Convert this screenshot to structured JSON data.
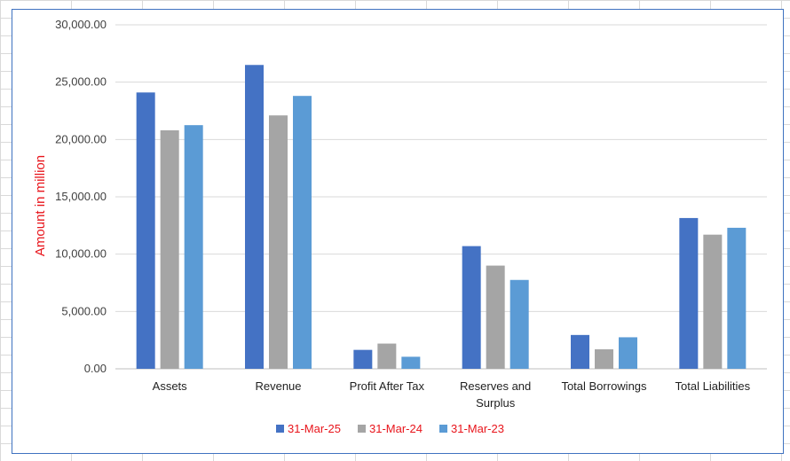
{
  "chart_data": {
    "type": "bar",
    "title": "",
    "xlabel": "",
    "ylabel": "Amount in million",
    "ylim": [
      0,
      30000
    ],
    "yticks": [
      "0.00",
      "5,000.00",
      "10,000.00",
      "15,000.00",
      "20,000.00",
      "25,000.00",
      "30,000.00"
    ],
    "ytick_values": [
      0,
      5000,
      10000,
      15000,
      20000,
      25000,
      30000
    ],
    "grid": true,
    "legend_position": "bottom",
    "categories": [
      [
        "Assets"
      ],
      [
        "Revenue"
      ],
      [
        "Profit After Tax"
      ],
      [
        "Reserves and",
        "Surplus"
      ],
      [
        "Total Borrowings"
      ],
      [
        "Total Liabilities"
      ]
    ],
    "series": [
      {
        "name": "31-Mar-25",
        "color": "#4472c4",
        "values": [
          24100,
          26500,
          1650,
          10700,
          2950,
          13150
        ]
      },
      {
        "name": "31-Mar-24",
        "color": "#a5a5a5",
        "values": [
          20800,
          22100,
          2200,
          9000,
          1700,
          11700
        ]
      },
      {
        "name": "31-Mar-23",
        "color": "#5b9bd5",
        "values": [
          21250,
          23800,
          1050,
          7750,
          2750,
          12300
        ]
      }
    ]
  }
}
